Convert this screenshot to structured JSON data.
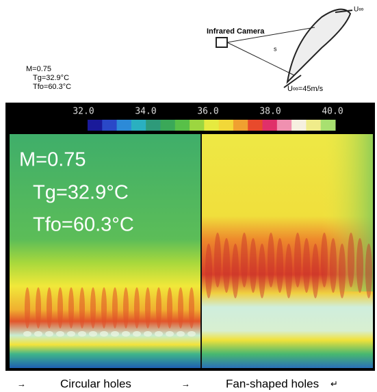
{
  "diagram": {
    "camera_label": "Infrared Camera",
    "inflow_label": "U∞",
    "s_label": "s",
    "velocity_label": "U∞=45m/s"
  },
  "small_caption": [
    "M=0.75",
    "Tg=32.9°C",
    "Tfo=60.3°C"
  ],
  "colorbar": {
    "ticks": [
      "32.0",
      "34.0",
      "36.0",
      "38.0",
      "40.0"
    ]
  },
  "overlay": [
    "M=0.75",
    "Tg=32.9°C",
    "Tfo=60.3°C"
  ],
  "captions": [
    {
      "marker": "→",
      "text": "Circular holes"
    },
    {
      "marker": "→",
      "text": "Fan-shaped holes",
      "end_mark": "↵"
    }
  ]
}
